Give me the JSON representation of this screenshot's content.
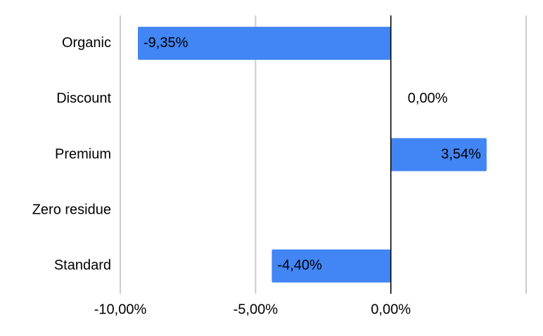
{
  "chart_data": {
    "type": "bar",
    "orientation": "horizontal",
    "categories": [
      "Organic",
      "Discount",
      "Premium",
      "Zero residue",
      "Standard"
    ],
    "values": [
      -9.35,
      0.0,
      3.54,
      null,
      -4.4
    ],
    "value_labels": [
      "-9,35%",
      "0,00%",
      "3,54%",
      null,
      "-4,40%"
    ],
    "color": "#4285f4",
    "xlim": [
      -10,
      5
    ],
    "xticks": [
      {
        "value": -10,
        "label": "-10,00%"
      },
      {
        "value": -5,
        "label": "-5,00%"
      },
      {
        "value": 0,
        "label": "0,00%"
      }
    ],
    "grid": true
  }
}
